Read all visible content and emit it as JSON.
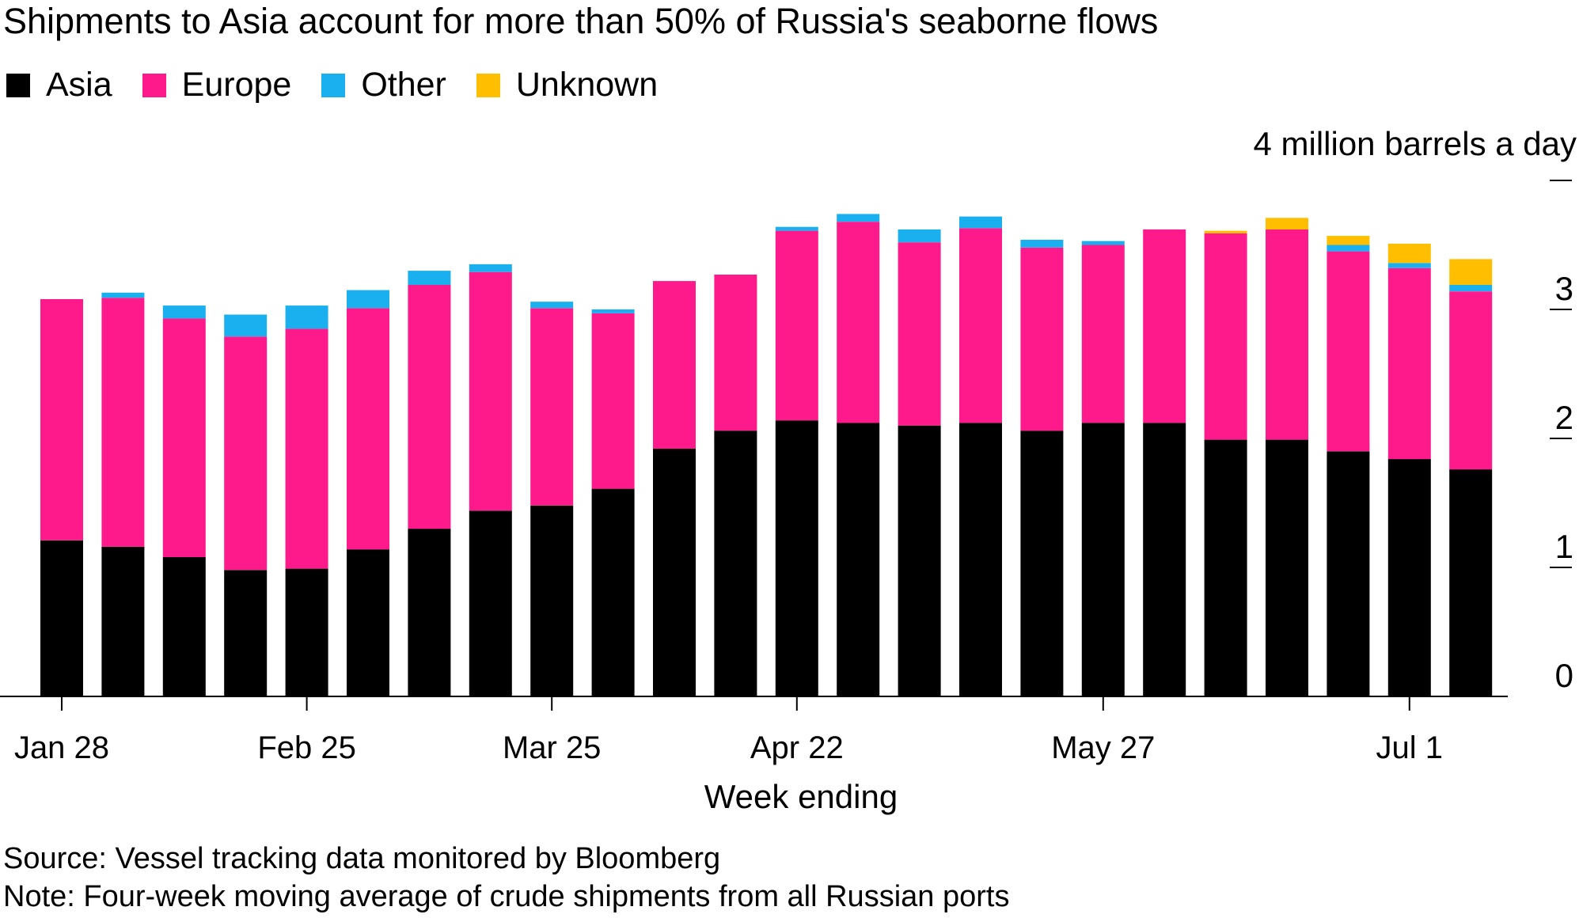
{
  "chart_data": {
    "type": "bar",
    "stacked": true,
    "title": "Shipments to Asia account for more than 50% of Russia's seaborne flows",
    "ylabel": "4 million barrels a day",
    "xlabel": "Week ending",
    "ylim": [
      0,
      4
    ],
    "yticks": [
      "0",
      "1",
      "2",
      "3"
    ],
    "legend_position": "top-left",
    "x_tick_labels": [
      {
        "index": 0,
        "label": "Jan 28"
      },
      {
        "index": 4,
        "label": "Feb 25"
      },
      {
        "index": 8,
        "label": "Mar 25"
      },
      {
        "index": 12,
        "label": "Apr 22"
      },
      {
        "index": 17,
        "label": "May 27"
      },
      {
        "index": 22,
        "label": "Jul 1"
      }
    ],
    "series": [
      {
        "name": "Asia",
        "color": "#000000",
        "values": [
          1.21,
          1.16,
          1.08,
          0.98,
          0.99,
          1.14,
          1.3,
          1.44,
          1.48,
          1.61,
          1.92,
          2.06,
          2.14,
          2.12,
          2.1,
          2.12,
          2.06,
          2.12,
          2.12,
          1.99,
          1.99,
          1.9,
          1.84,
          1.76
        ]
      },
      {
        "name": "Europe",
        "color": "#ff1a8c",
        "values": [
          1.87,
          1.93,
          1.85,
          1.81,
          1.86,
          1.87,
          1.89,
          1.85,
          1.53,
          1.36,
          1.3,
          1.21,
          1.47,
          1.56,
          1.42,
          1.51,
          1.42,
          1.38,
          1.5,
          1.6,
          1.63,
          1.55,
          1.48,
          1.38
        ]
      },
      {
        "name": "Other",
        "color": "#1ab0f0",
        "values": [
          0,
          0.04,
          0.1,
          0.17,
          0.18,
          0.14,
          0.11,
          0.06,
          0.05,
          0.03,
          0,
          0,
          0.03,
          0.06,
          0.1,
          0.09,
          0.06,
          0.03,
          0,
          0,
          0,
          0.05,
          0.04,
          0.05
        ]
      },
      {
        "name": "Unknown",
        "color": "#ffbf00",
        "values": [
          0,
          0,
          0,
          0,
          0,
          0,
          0,
          0,
          0,
          0,
          0,
          0,
          0,
          0,
          0,
          0,
          0,
          0,
          0,
          0.02,
          0.09,
          0.07,
          0.15,
          0.2
        ]
      }
    ]
  },
  "footer": {
    "source": "Source: Vessel tracking data monitored by Bloomberg",
    "note": "Note: Four-week moving average of crude shipments from all Russian ports"
  }
}
